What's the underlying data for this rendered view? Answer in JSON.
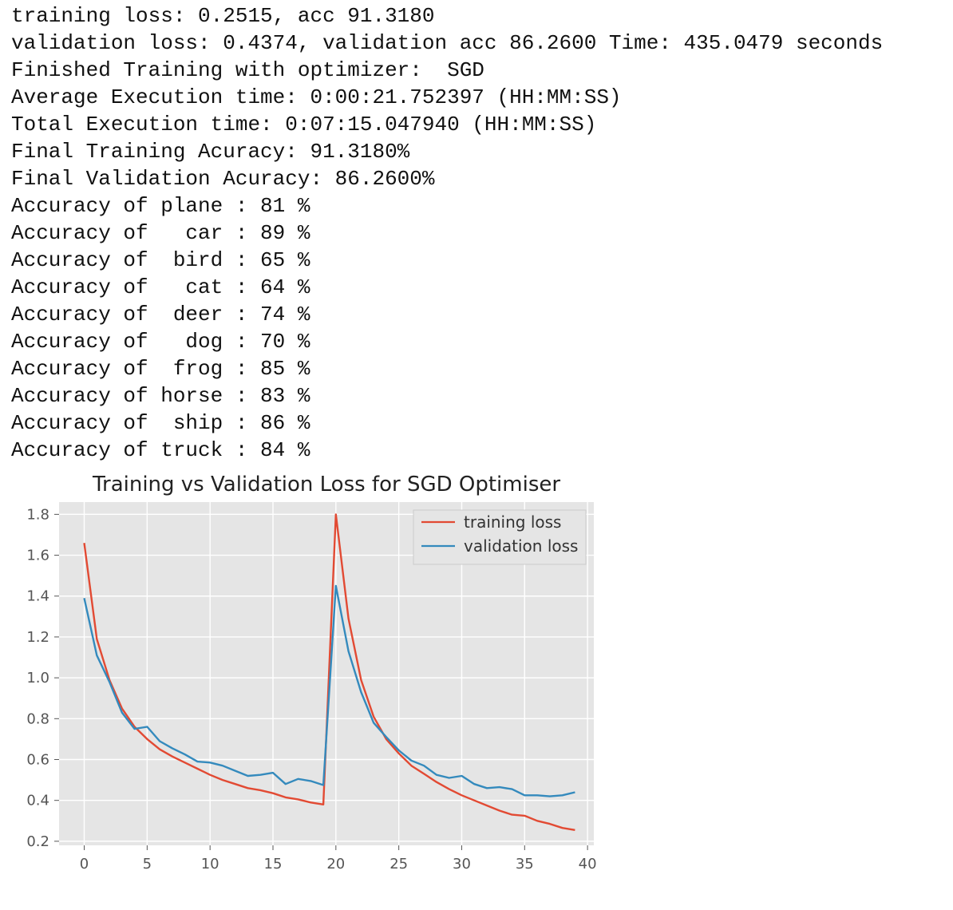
{
  "console": {
    "lines": [
      "training loss: 0.2515, acc 91.3180",
      "validation loss: 0.4374, validation acc 86.2600 Time: 435.0479 seconds",
      "Finished Training with optimizer:  SGD",
      "Average Execution time: 0:00:21.752397 (HH:MM:SS)",
      "Total Execution time: 0:07:15.047940 (HH:MM:SS)",
      "Final Training Acuracy: 91.3180%",
      "Final Validation Acuracy: 86.2600%",
      "Accuracy of plane : 81 %",
      "Accuracy of   car : 89 %",
      "Accuracy of  bird : 65 %",
      "Accuracy of   cat : 64 %",
      "Accuracy of  deer : 74 %",
      "Accuracy of   dog : 70 %",
      "Accuracy of  frog : 85 %",
      "Accuracy of horse : 83 %",
      "Accuracy of  ship : 86 %",
      "Accuracy of truck : 84 %"
    ]
  },
  "chart_data": {
    "type": "line",
    "title": "Training vs Validation Loss for SGD Optimiser",
    "xlabel": "",
    "ylabel": "",
    "xlim": [
      -2,
      40.5
    ],
    "ylim": [
      0.18,
      1.86
    ],
    "xticks": [
      0,
      5,
      10,
      15,
      20,
      25,
      30,
      35,
      40
    ],
    "yticks": [
      0.2,
      0.4,
      0.6,
      0.8,
      1.0,
      1.2,
      1.4,
      1.6,
      1.8
    ],
    "ytick_labels": [
      "0.2",
      "0.4",
      "0.6",
      "0.8",
      "1.0",
      "1.2",
      "1.4",
      "1.6",
      "1.8"
    ],
    "grid": true,
    "legend_position": "upper right",
    "background": "#e5e5e5",
    "series": [
      {
        "name": "training loss",
        "color": "#e24a33",
        "x": [
          0,
          1,
          2,
          3,
          4,
          5,
          6,
          7,
          8,
          9,
          10,
          11,
          12,
          13,
          14,
          15,
          16,
          17,
          18,
          19,
          20,
          21,
          22,
          23,
          24,
          25,
          26,
          27,
          28,
          29,
          30,
          31,
          32,
          33,
          34,
          35,
          36,
          37,
          38,
          39
        ],
        "values": [
          1.66,
          1.19,
          0.99,
          0.85,
          0.76,
          0.7,
          0.65,
          0.615,
          0.585,
          0.555,
          0.525,
          0.5,
          0.48,
          0.46,
          0.45,
          0.435,
          0.415,
          0.405,
          0.39,
          0.38,
          1.8,
          1.29,
          0.99,
          0.81,
          0.7,
          0.63,
          0.57,
          0.53,
          0.49,
          0.455,
          0.425,
          0.4,
          0.375,
          0.35,
          0.33,
          0.325,
          0.3,
          0.285,
          0.265,
          0.255
        ]
      },
      {
        "name": "validation loss",
        "color": "#348abd",
        "x": [
          0,
          1,
          2,
          3,
          4,
          5,
          6,
          7,
          8,
          9,
          10,
          11,
          12,
          13,
          14,
          15,
          16,
          17,
          18,
          19,
          20,
          21,
          22,
          23,
          24,
          25,
          26,
          27,
          28,
          29,
          30,
          31,
          32,
          33,
          34,
          35,
          36,
          37,
          38,
          39
        ],
        "values": [
          1.39,
          1.11,
          0.98,
          0.83,
          0.75,
          0.76,
          0.69,
          0.655,
          0.625,
          0.59,
          0.585,
          0.57,
          0.545,
          0.52,
          0.525,
          0.535,
          0.48,
          0.505,
          0.495,
          0.475,
          1.45,
          1.13,
          0.93,
          0.78,
          0.71,
          0.645,
          0.595,
          0.57,
          0.525,
          0.51,
          0.52,
          0.48,
          0.46,
          0.465,
          0.455,
          0.425,
          0.425,
          0.42,
          0.425,
          0.44
        ]
      }
    ]
  }
}
